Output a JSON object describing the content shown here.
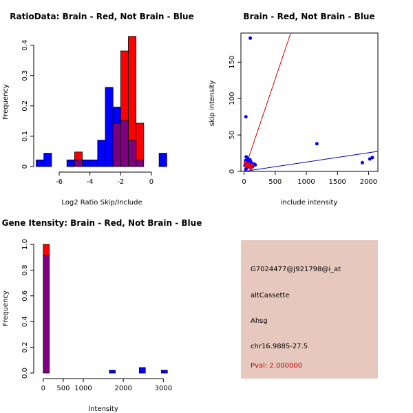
{
  "chart_data": [
    {
      "type": "bar",
      "title": "RatioData: Brain - Red, Not Brain - Blue",
      "xlabel": "Log2 Ratio Skip/Include",
      "ylabel": "Frequency",
      "xlim": [
        -7.3,
        1.3
      ],
      "ylim": [
        0,
        0.44
      ],
      "xticks": [
        -6,
        -4,
        -2,
        0
      ],
      "yticks": [
        0,
        0.1,
        0.2,
        0.3,
        0.4
      ],
      "bin_width": 0.5,
      "series": [
        {
          "name": "Not Brain",
          "color": "#0000ff",
          "bins": [
            [
              -7.5,
              0.022
            ],
            [
              -7.0,
              0.044
            ],
            [
              -5.5,
              0.022
            ],
            [
              -5.0,
              0.022
            ],
            [
              -4.5,
              0.022
            ],
            [
              -4.0,
              0.022
            ],
            [
              -3.5,
              0.087
            ],
            [
              -3.0,
              0.261
            ],
            [
              -2.5,
              0.196
            ],
            [
              -2.0,
              0.152
            ],
            [
              -1.5,
              0.087
            ],
            [
              -1.0,
              0.022
            ],
            [
              0.5,
              0.044
            ]
          ]
        },
        {
          "name": "Brain",
          "color": "#ff0000",
          "bins": [
            [
              -5.0,
              0.048
            ],
            [
              -2.5,
              0.143
            ],
            [
              -2.0,
              0.381
            ],
            [
              -1.5,
              0.429
            ],
            [
              -1.0,
              0.143
            ]
          ]
        }
      ]
    },
    {
      "type": "scatter",
      "title": "Brain - Red, Not Brain - Blue",
      "xlabel": "include intensity",
      "ylabel": "skip intensity",
      "xlim": [
        -50,
        2150
      ],
      "ylim": [
        0,
        190
      ],
      "xticks": [
        0,
        500,
        1000,
        1500,
        2000
      ],
      "yticks": [
        0,
        50,
        100,
        150
      ],
      "series": [
        {
          "name": "Not Brain",
          "color": "#0000ff",
          "points": [
            [
              100,
              183
            ],
            [
              30,
              75
            ],
            [
              1170,
              38
            ],
            [
              1900,
              12
            ],
            [
              2020,
              17
            ],
            [
              2060,
              19
            ],
            [
              15,
              8
            ],
            [
              20,
              12
            ],
            [
              25,
              15
            ],
            [
              35,
              20
            ],
            [
              40,
              5
            ],
            [
              50,
              10
            ],
            [
              60,
              18
            ],
            [
              70,
              14
            ],
            [
              80,
              9
            ],
            [
              95,
              16
            ],
            [
              110,
              13
            ],
            [
              120,
              11
            ],
            [
              140,
              7
            ],
            [
              160,
              10
            ],
            [
              180,
              9
            ],
            [
              30,
              3
            ],
            [
              45,
              7
            ],
            [
              55,
              12
            ],
            [
              85,
              6
            ]
          ]
        },
        {
          "name": "Brain",
          "color": "#ff0000",
          "points": [
            [
              20,
              12
            ],
            [
              35,
              7
            ],
            [
              50,
              9
            ],
            [
              65,
              10
            ],
            [
              80,
              8
            ],
            [
              100,
              6
            ],
            [
              110,
              4
            ],
            [
              130,
              9
            ]
          ]
        }
      ],
      "fit_lines": [
        {
          "name": "Brain fit",
          "color": "#cc0000",
          "from": [
            0,
            0
          ],
          "to": [
            750,
            190
          ]
        },
        {
          "name": "Not Brain fit",
          "color": "#0000aa",
          "from": [
            0,
            0
          ],
          "to": [
            2150,
            27.5
          ]
        }
      ]
    },
    {
      "type": "bar",
      "title": "Gene Itensity: Brain - Red, Not Brain - Blue",
      "xlabel": "Intensity",
      "ylabel": "Frequency",
      "xlim": [
        -100,
        3200
      ],
      "ylim": [
        0,
        1.0
      ],
      "xticks": [
        0,
        500,
        1000,
        2000,
        3000
      ],
      "yticks": [
        0,
        0.2,
        0.4,
        0.6,
        0.8,
        1.0
      ],
      "bin_width": 150,
      "series": [
        {
          "name": "Not Brain",
          "color": "#0000ff",
          "bins": [
            [
              0,
              0.913
            ],
            [
              1650,
              0.022
            ],
            [
              2400,
              0.043
            ],
            [
              2950,
              0.022
            ]
          ]
        },
        {
          "name": "Brain",
          "color": "#ff0000",
          "bins": [
            [
              0,
              1.0
            ]
          ]
        }
      ]
    }
  ],
  "info": {
    "probe_id": "G7024477@J921798@i_at",
    "event_type": "altCassette",
    "gene": "Ahsg",
    "location": "chr16.9885-27.5",
    "pval": "Pval: 2.000000"
  }
}
